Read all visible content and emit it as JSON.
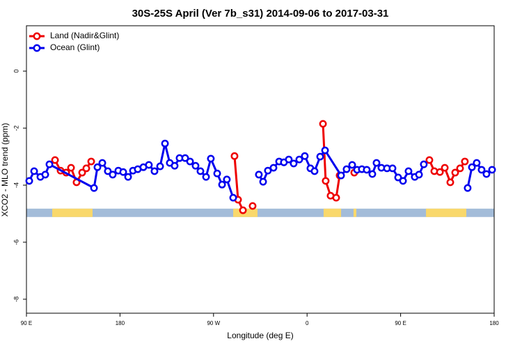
{
  "chart_data": {
    "type": "line",
    "title": "30S-25S April (Ver 7b_s31)   2014-09-06 to 2017-03-31",
    "x_label": "Longitude (deg E)",
    "y_label": "XCO2 - MLO trend (ppm)",
    "xlim": [
      90,
      540
    ],
    "xticks": [
      {
        "value": 90,
        "label": "90 E"
      },
      180,
      {
        "value": 270,
        "label": "90 W"
      },
      {
        "value": 360,
        "label": "0"
      },
      {
        "value": 450,
        "label": "90 E"
      },
      {
        "value": 540,
        "label": "180"
      }
    ],
    "ylim": [
      -8.49,
      1.59
    ],
    "yticks": [
      0,
      -2,
      -4,
      -6,
      -8
    ],
    "legend": "top-left",
    "surface_bar": {
      "y": -4.97,
      "ocean_color": "#a3bcd9",
      "land_color": "#f9d86b",
      "land_segments": [
        [
          114.8,
          153.6
        ],
        [
          288.9,
          312.3
        ],
        [
          375.9,
          392.7
        ],
        [
          404.7,
          407.4
        ],
        [
          474.4,
          513.2
        ]
      ]
    },
    "series": [
      {
        "name": "Land (Nadir&Glint)",
        "color": "#ee0000",
        "x": [
          117.5,
          122.8,
          128.2,
          132.9,
          138.2,
          143.6,
          147.6,
          152.3,
          null,
          290.2,
          293.6,
          298.3,
          null,
          307.6,
          null,
          375.3,
          377.9,
          382.6,
          388.0,
          391.3,
          null,
          405.4,
          null,
          477.7,
          482.4,
          487.8,
          492.5,
          497.8,
          502.5,
          507.2,
          511.8
        ],
        "values": [
          -3.12,
          -3.49,
          -3.56,
          -3.39,
          -3.9,
          -3.56,
          -3.41,
          -3.17,
          null,
          -2.98,
          -4.51,
          -4.88,
          null,
          -4.73,
          null,
          -1.85,
          -3.85,
          -4.37,
          -4.44,
          -3.66,
          null,
          -3.56,
          null,
          -3.12,
          -3.51,
          -3.54,
          -3.39,
          -3.9,
          -3.56,
          -3.41,
          -3.17
        ]
      },
      {
        "name": "Ocean (Glint)",
        "color": "#0000ee",
        "x": [
          92.7,
          97.4,
          103.4,
          108.1,
          112.1,
          155.0,
          158.3,
          163.0,
          168.3,
          173.0,
          178.4,
          183.1,
          187.8,
          192.5,
          197.1,
          202.5,
          207.8,
          213.2,
          218.6,
          223.3,
          227.9,
          232.6,
          237.3,
          242.7,
          247.4,
          252.7,
          257.4,
          262.8,
          267.4,
          273.5,
          278.2,
          282.8,
          288.9,
          null,
          313.6,
          317.7,
          322.3,
          327.7,
          333.1,
          337.7,
          342.4,
          347.1,
          352.5,
          357.8,
          363.2,
          367.2,
          372.6,
          377.3,
          392.7,
          398.0,
          403.4,
          408.1,
          412.7,
          417.4,
          422.8,
          426.8,
          431.5,
          436.9,
          442.2,
          447.6,
          452.3,
          457.6,
          463.6,
          467.7,
          472.3,
          null,
          514.5,
          518.6,
          523.2,
          527.9,
          532.6,
          538.0
        ],
        "values": [
          -3.85,
          -3.51,
          -3.71,
          -3.63,
          -3.27,
          -4.1,
          -3.37,
          -3.22,
          -3.51,
          -3.63,
          -3.49,
          -3.54,
          -3.71,
          -3.49,
          -3.44,
          -3.37,
          -3.29,
          -3.51,
          -3.34,
          -2.54,
          -3.22,
          -3.32,
          -3.05,
          -3.05,
          -3.17,
          -3.32,
          -3.51,
          -3.71,
          -3.07,
          -3.59,
          -3.98,
          -3.8,
          -4.44,
          null,
          -3.63,
          -3.88,
          -3.49,
          -3.39,
          -3.17,
          -3.2,
          -3.1,
          -3.24,
          -3.1,
          -2.98,
          -3.41,
          -3.51,
          -3.0,
          -2.78,
          -3.66,
          -3.44,
          -3.29,
          -3.46,
          -3.44,
          -3.46,
          -3.61,
          -3.22,
          -3.39,
          -3.41,
          -3.41,
          -3.73,
          -3.85,
          -3.51,
          -3.71,
          -3.63,
          -3.27,
          null,
          -4.1,
          -3.37,
          -3.22,
          -3.46,
          -3.61,
          -3.46
        ]
      }
    ]
  }
}
